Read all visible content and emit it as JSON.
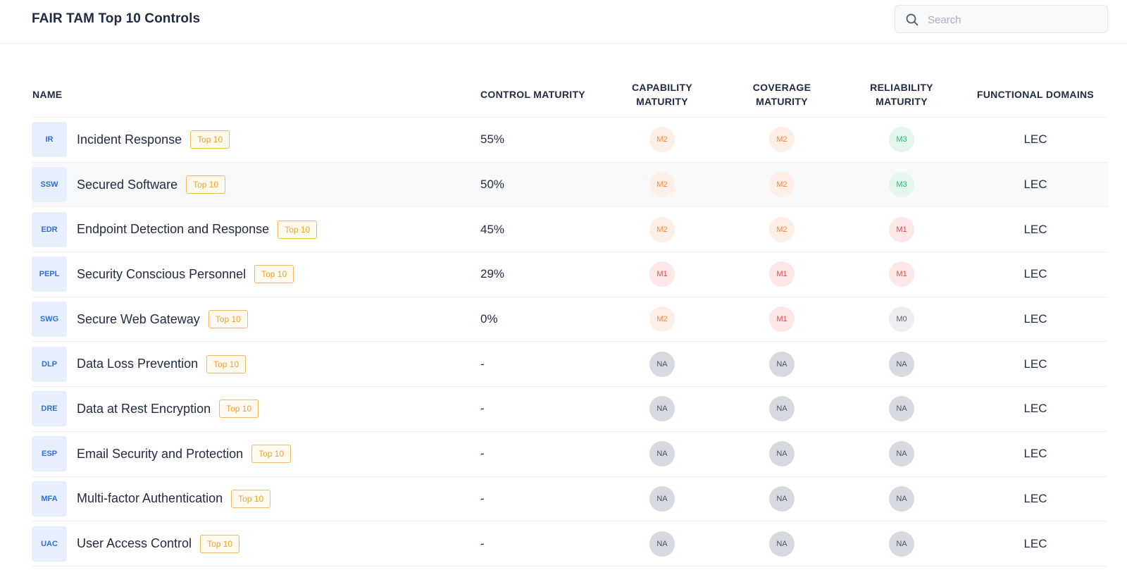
{
  "header": {
    "title": "FAIR TAM Top 10 Controls",
    "search": {
      "placeholder": "Search",
      "value": ""
    }
  },
  "table": {
    "columns": {
      "name": "NAME",
      "control_maturity": "CONTROL MATURITY",
      "capability_maturity": "CAPABILITY MATURITY",
      "coverage_maturity": "COVERAGE MATURITY",
      "reliability_maturity": "RELIABILITY MATURITY",
      "functional_domains": "FUNCTIONAL DOMAINS"
    },
    "rows": [
      {
        "abbr": "IR",
        "name": "Incident Response",
        "tag": "Top 10",
        "control_maturity": "55%",
        "capability": "M2",
        "coverage": "M2",
        "reliability": "M3",
        "domains": "LEC"
      },
      {
        "abbr": "SSW",
        "name": "Secured Software",
        "tag": "Top 10",
        "control_maturity": "50%",
        "capability": "M2",
        "coverage": "M2",
        "reliability": "M3",
        "domains": "LEC"
      },
      {
        "abbr": "EDR",
        "name": "Endpoint Detection and Response",
        "tag": "Top 10",
        "control_maturity": "45%",
        "capability": "M2",
        "coverage": "M2",
        "reliability": "M1",
        "domains": "LEC"
      },
      {
        "abbr": "PEPL",
        "name": "Security Conscious Personnel",
        "tag": "Top 10",
        "control_maturity": "29%",
        "capability": "M1",
        "coverage": "M1",
        "reliability": "M1",
        "domains": "LEC"
      },
      {
        "abbr": "SWG",
        "name": "Secure Web Gateway",
        "tag": "Top 10",
        "control_maturity": "0%",
        "capability": "M2",
        "coverage": "M1",
        "reliability": "M0",
        "domains": "LEC"
      },
      {
        "abbr": "DLP",
        "name": "Data Loss Prevention",
        "tag": "Top 10",
        "control_maturity": "-",
        "capability": "NA",
        "coverage": "NA",
        "reliability": "NA",
        "domains": "LEC"
      },
      {
        "abbr": "DRE",
        "name": "Data at Rest Encryption",
        "tag": "Top 10",
        "control_maturity": "-",
        "capability": "NA",
        "coverage": "NA",
        "reliability": "NA",
        "domains": "LEC"
      },
      {
        "abbr": "ESP",
        "name": "Email Security and Protection",
        "tag": "Top 10",
        "control_maturity": "-",
        "capability": "NA",
        "coverage": "NA",
        "reliability": "NA",
        "domains": "LEC"
      },
      {
        "abbr": "MFA",
        "name": "Multi-factor Authentication",
        "tag": "Top 10",
        "control_maturity": "-",
        "capability": "NA",
        "coverage": "NA",
        "reliability": "NA",
        "domains": "LEC"
      },
      {
        "abbr": "UAC",
        "name": "User Access Control",
        "tag": "Top 10",
        "control_maturity": "-",
        "capability": "NA",
        "coverage": "NA",
        "reliability": "NA",
        "domains": "LEC"
      }
    ]
  },
  "colors": {
    "M0": "#5a6170",
    "M1": "#e34a4a",
    "M2": "#ef8a3a",
    "M3": "#2fb66a",
    "NA": "#4a5466",
    "tag": "#f0a02a",
    "abbr": "#2f6fd6"
  },
  "icons": {
    "search": "search-icon"
  }
}
